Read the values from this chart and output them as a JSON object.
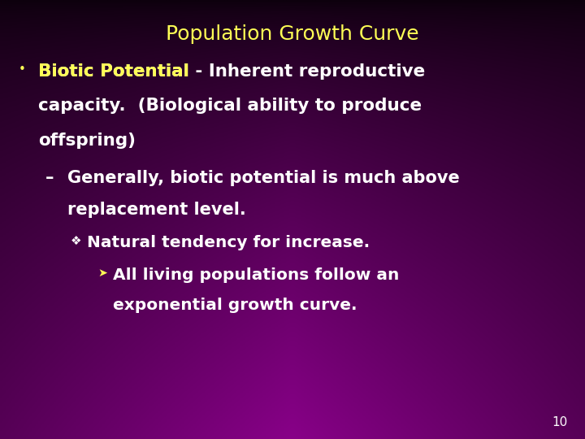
{
  "title": "Population Growth Curve",
  "title_color": "#FFFF55",
  "title_fontsize": 18,
  "slide_number": "10",
  "slide_number_color": "#ffffff",
  "bullet_color": "#FFFF55",
  "text_color": "#ffffff",
  "yellow_color": "#FFFF55",
  "content": [
    {
      "level": 0,
      "bold_part": "Biotic Potential",
      "rest_lines": [
        " - Inherent reproductive",
        "capacity.  (Biological ability to produce",
        "offspring)"
      ]
    },
    {
      "level": 1,
      "lines": [
        "Generally, biotic potential is much above",
        "replacement level."
      ]
    },
    {
      "level": 2,
      "lines": [
        "Natural tendency for increase."
      ]
    },
    {
      "level": 3,
      "lines": [
        "All living populations follow an",
        "exponential growth curve."
      ]
    }
  ],
  "gradient": {
    "top_left": "#0d000d",
    "center_bottom": "#7a007a"
  }
}
